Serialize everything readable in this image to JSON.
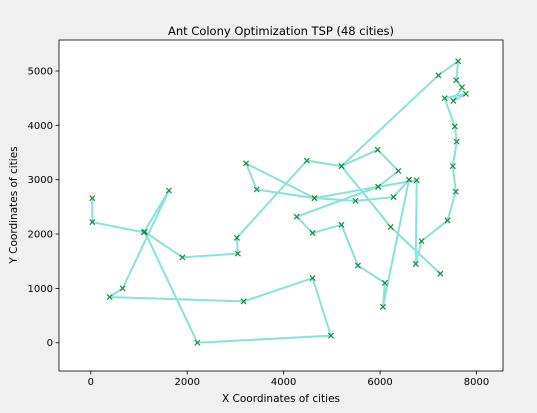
{
  "chart_data": {
    "type": "line",
    "title": "Ant Colony Optimization TSP (48 cities)",
    "xlabel": "X Coordinates of cities",
    "ylabel": "Y Coordinates of cities",
    "xlim": [
      -660,
      8550
    ],
    "ylim": [
      -520,
      5570
    ],
    "xticks": [
      0,
      2000,
      4000,
      6000,
      8000
    ],
    "yticks": [
      0,
      1000,
      2000,
      3000,
      4000,
      5000
    ],
    "grid": false,
    "route_color": "#87e2da",
    "marker_color": "#1a8c3c",
    "route": [
      [
        30,
        2660
      ],
      [
        30,
        2220
      ],
      [
        1100,
        2030
      ],
      [
        1620,
        2800
      ],
      [
        660,
        1000
      ],
      [
        390,
        840
      ],
      [
        3170,
        760
      ],
      [
        4600,
        1190
      ],
      [
        4980,
        130
      ],
      [
        2210,
        0
      ],
      [
        1120,
        2040
      ],
      [
        1900,
        1570
      ],
      [
        3050,
        1640
      ],
      [
        3030,
        1930
      ],
      [
        4480,
        3350
      ],
      [
        5200,
        3250
      ],
      [
        5950,
        3550
      ],
      [
        6380,
        3160
      ],
      [
        5960,
        2870
      ],
      [
        4640,
        2660
      ],
      [
        3440,
        2820
      ],
      [
        3220,
        3300
      ],
      [
        4640,
        2660
      ],
      [
        5490,
        2610
      ],
      [
        6280,
        2680
      ],
      [
        6600,
        3000
      ],
      [
        6060,
        660
      ],
      [
        6100,
        1100
      ],
      [
        5540,
        1420
      ],
      [
        5200,
        2170
      ],
      [
        4600,
        2020
      ],
      [
        4270,
        2320
      ],
      [
        5960,
        2870
      ],
      [
        6760,
        2990
      ],
      [
        6740,
        1450
      ],
      [
        6860,
        1870
      ],
      [
        7400,
        2250
      ],
      [
        7570,
        2780
      ],
      [
        7510,
        3250
      ],
      [
        7590,
        3700
      ],
      [
        7550,
        3980
      ],
      [
        7340,
        4500
      ],
      [
        7780,
        4580
      ],
      [
        7520,
        4450
      ],
      [
        7700,
        4700
      ],
      [
        7580,
        4830
      ],
      [
        7620,
        5180
      ],
      [
        7210,
        4920
      ],
      [
        5200,
        3250
      ],
      [
        6220,
        2130
      ],
      [
        7250,
        1270
      ]
    ]
  }
}
